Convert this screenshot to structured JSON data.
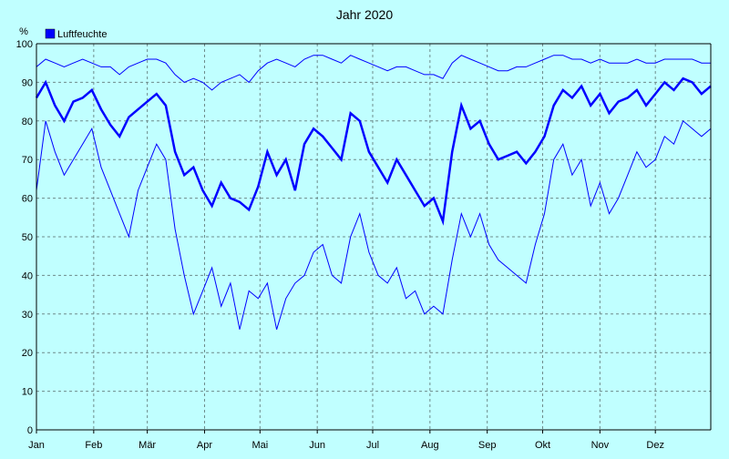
{
  "chart_data": {
    "type": "line",
    "title": "Jahr 2020",
    "ylabel": "%",
    "ylim": [
      0,
      100
    ],
    "yticks": [
      0,
      10,
      20,
      30,
      40,
      50,
      60,
      70,
      80,
      90,
      100
    ],
    "xlabels": [
      "Jan",
      "Feb",
      "Mär",
      "Apr",
      "Mai",
      "Jun",
      "Jul",
      "Aug",
      "Sep",
      "Okt",
      "Nov",
      "Dez"
    ],
    "grid": true,
    "legend": "top-left",
    "series": [
      {
        "name": "Luftfeuchte",
        "color": "#0000ff",
        "x": [
          1,
          6,
          11,
          16,
          21,
          26,
          31,
          36,
          41,
          46,
          51,
          56,
          61,
          66,
          71,
          76,
          81,
          86,
          91,
          96,
          101,
          106,
          111,
          116,
          121,
          126,
          131,
          136,
          141,
          146,
          151,
          156,
          161,
          166,
          171,
          176,
          181,
          186,
          191,
          196,
          201,
          206,
          211,
          216,
          221,
          226,
          231,
          236,
          241,
          246,
          251,
          256,
          261,
          266,
          271,
          276,
          281,
          286,
          291,
          296,
          301,
          306,
          311,
          316,
          321,
          326,
          331,
          336,
          341,
          346,
          351,
          356,
          361,
          366
        ],
        "mean": [
          86,
          90,
          84,
          80,
          85,
          86,
          88,
          83,
          79,
          76,
          81,
          83,
          85,
          87,
          84,
          72,
          66,
          68,
          62,
          58,
          64,
          60,
          59,
          57,
          63,
          72,
          66,
          70,
          62,
          74,
          78,
          76,
          73,
          70,
          82,
          80,
          72,
          68,
          64,
          70,
          66,
          62,
          58,
          60,
          54,
          72,
          84,
          78,
          80,
          74,
          70,
          71,
          72,
          69,
          72,
          76,
          84,
          88,
          86,
          89,
          84,
          87,
          82,
          85,
          86,
          88,
          84,
          87,
          90,
          88,
          91,
          90,
          87,
          89
        ],
        "max": [
          94,
          96,
          95,
          94,
          95,
          96,
          95,
          94,
          94,
          92,
          94,
          95,
          96,
          96,
          95,
          92,
          90,
          91,
          90,
          88,
          90,
          91,
          92,
          90,
          93,
          95,
          96,
          95,
          94,
          96,
          97,
          97,
          96,
          95,
          97,
          96,
          95,
          94,
          93,
          94,
          94,
          93,
          92,
          92,
          91,
          95,
          97,
          96,
          95,
          94,
          93,
          93,
          94,
          94,
          95,
          96,
          97,
          97,
          96,
          96,
          95,
          96,
          95,
          95,
          95,
          96,
          95,
          95,
          96,
          96,
          96,
          96,
          95,
          95
        ],
        "min": [
          62,
          80,
          72,
          66,
          70,
          74,
          78,
          68,
          62,
          56,
          50,
          62,
          68,
          74,
          70,
          52,
          40,
          30,
          36,
          42,
          32,
          38,
          26,
          36,
          34,
          38,
          26,
          34,
          38,
          40,
          46,
          48,
          40,
          38,
          50,
          56,
          46,
          40,
          38,
          42,
          34,
          36,
          30,
          32,
          30,
          44,
          56,
          50,
          56,
          48,
          44,
          42,
          40,
          38,
          48,
          56,
          70,
          74,
          66,
          70,
          58,
          64,
          56,
          60,
          66,
          72,
          68,
          70,
          76,
          74,
          80,
          78,
          76,
          78
        ]
      }
    ]
  }
}
